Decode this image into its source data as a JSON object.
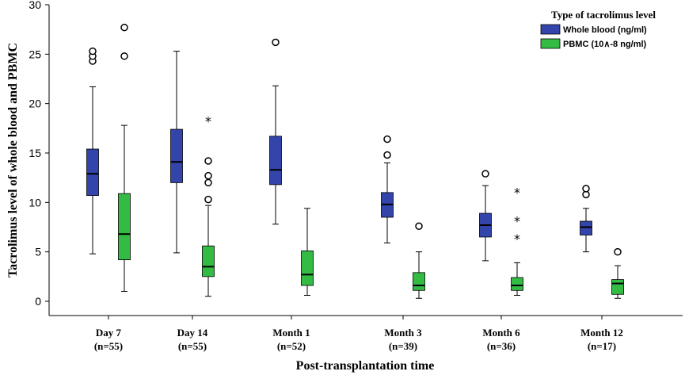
{
  "chart_data": {
    "type": "boxplot",
    "title": "",
    "xlabel": "Post-transplantation time",
    "ylabel": "Tacrolimus level of whole blood and PBMC",
    "ylim": [
      0,
      30
    ],
    "yticks": [
      0,
      5,
      10,
      15,
      20,
      25,
      30
    ],
    "categories": [
      {
        "name": "Day 7",
        "n": "(n=55)"
      },
      {
        "name": "Day 14",
        "n": "(n=55)"
      },
      {
        "name": "Month 1",
        "n": "(n=52)"
      },
      {
        "name": "Month 3",
        "n": "(n=39)"
      },
      {
        "name": "Month 6",
        "n": "(n=36)"
      },
      {
        "name": "Month 12",
        "n": "(n=17)"
      }
    ],
    "legend": {
      "title": "Type of tacrolimus level",
      "position": "top-right"
    },
    "series": [
      {
        "name": "Whole blood (ng/ml)",
        "color": "#3344aa",
        "boxes": [
          {
            "min": 4.8,
            "q1": 10.7,
            "median": 12.9,
            "q3": 15.4,
            "max": 21.7,
            "outliers": [
              24.3,
              24.8,
              25.3
            ],
            "extremes": []
          },
          {
            "min": 4.9,
            "q1": 12.0,
            "median": 14.1,
            "q3": 17.4,
            "max": 25.3,
            "outliers": [],
            "extremes": []
          },
          {
            "min": 7.8,
            "q1": 11.8,
            "median": 13.3,
            "q3": 16.7,
            "max": 21.8,
            "outliers": [
              26.2
            ],
            "extremes": []
          },
          {
            "min": 5.9,
            "q1": 8.5,
            "median": 9.8,
            "q3": 11.0,
            "max": 14.0,
            "outliers": [
              14.8,
              16.4
            ],
            "extremes": []
          },
          {
            "min": 4.1,
            "q1": 6.5,
            "median": 7.7,
            "q3": 8.9,
            "max": 11.7,
            "outliers": [
              12.9
            ],
            "extremes": []
          },
          {
            "min": 5.0,
            "q1": 6.7,
            "median": 7.5,
            "q3": 8.1,
            "max": 9.4,
            "outliers": [
              10.8,
              11.4
            ],
            "extremes": []
          }
        ]
      },
      {
        "name": "PBMC (10∧-8 ng/ml)",
        "color": "#33bb44",
        "boxes": [
          {
            "min": 1.0,
            "q1": 4.2,
            "median": 6.8,
            "q3": 10.9,
            "max": 17.8,
            "outliers": [
              24.8,
              27.7
            ],
            "extremes": []
          },
          {
            "min": 0.5,
            "q1": 2.5,
            "median": 3.5,
            "q3": 5.6,
            "max": 9.7,
            "outliers": [
              10.3,
              12.0,
              12.7,
              14.2
            ],
            "extremes": [
              18.4
            ]
          },
          {
            "min": 0.6,
            "q1": 1.6,
            "median": 2.7,
            "q3": 5.1,
            "max": 9.4,
            "outliers": [],
            "extremes": []
          },
          {
            "min": 0.3,
            "q1": 1.1,
            "median": 1.6,
            "q3": 2.9,
            "max": 5.0,
            "outliers": [
              7.6
            ],
            "extremes": []
          },
          {
            "min": 0.6,
            "q1": 1.1,
            "median": 1.6,
            "q3": 2.4,
            "max": 3.9,
            "outliers": [],
            "extremes": [
              6.5,
              8.3,
              11.2
            ]
          },
          {
            "min": 0.3,
            "q1": 0.7,
            "median": 1.8,
            "q3": 2.2,
            "max": 3.6,
            "outliers": [
              5.0
            ],
            "extremes": []
          }
        ]
      }
    ]
  }
}
